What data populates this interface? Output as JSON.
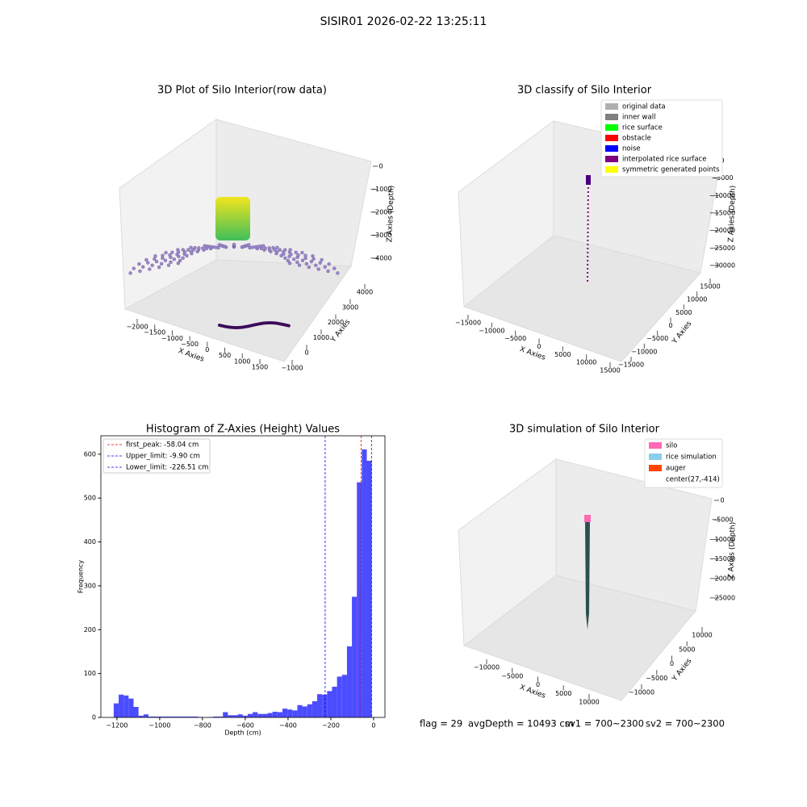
{
  "title": "SISIR01 2026-02-22 13:25:11",
  "chart_data": [
    {
      "type": "scatter3d",
      "title": "3D Plot of Silo Interior(row data)",
      "xlabel": "X Axies",
      "ylabel": "Y Axies",
      "zlabel": "Z Axies (Depth)",
      "xlim": [
        -2000,
        1500
      ],
      "xticks": [
        {
          "value": -2000,
          "label": "−2000"
        },
        {
          "value": -1500,
          "label": "−1500"
        },
        {
          "value": -1000,
          "label": "−1000"
        },
        {
          "value": -500,
          "label": "−500"
        },
        0,
        500,
        1000,
        1500
      ],
      "ylim": [
        -1000,
        4000
      ],
      "yticks": [
        {
          "value": -1000,
          "label": "−1000"
        },
        0,
        1000,
        2000,
        3000,
        4000
      ],
      "zlim": [
        -4000,
        0
      ],
      "zticks": [
        {
          "value": -4000,
          "label": "−4000"
        },
        {
          "value": -3000,
          "label": "−3000"
        },
        {
          "value": -2000,
          "label": "−2000"
        },
        {
          "value": -1000,
          "label": "−1000"
        },
        0
      ]
    },
    {
      "type": "scatter3d",
      "title": "3D classify of Silo Interior",
      "xlabel": "X Axies",
      "ylabel": "Y Axies",
      "zlabel": "Z Axies (Depth)",
      "xlim": [
        -15000,
        15000
      ],
      "xticks": [
        {
          "value": -15000,
          "label": "−15000"
        },
        {
          "value": -10000,
          "label": "−10000"
        },
        {
          "value": -5000,
          "label": "−5000"
        },
        0,
        5000,
        10000,
        15000
      ],
      "ylim": [
        -15000,
        15000
      ],
      "yticks": [
        {
          "value": -15000,
          "label": "−15000"
        },
        {
          "value": -10000,
          "label": "−10000"
        },
        {
          "value": -5000,
          "label": "−5000"
        },
        0,
        5000,
        10000,
        15000
      ],
      "zlim": [
        -30000,
        0
      ],
      "zticks": [
        {
          "value": -30000,
          "label": "−30000"
        },
        {
          "value": -25000,
          "label": "−25000"
        },
        {
          "value": -20000,
          "label": "−20000"
        },
        {
          "value": -15000,
          "label": "−15000"
        },
        {
          "value": -10000,
          "label": "−10000"
        },
        {
          "value": -5000,
          "label": "−5000"
        },
        0
      ],
      "legend": [
        {
          "name": "original data",
          "color": "#b0b0b0"
        },
        {
          "name": "inner wall",
          "color": "#808080"
        },
        {
          "name": "rice surface",
          "color": "#00ff00"
        },
        {
          "name": "obstacle",
          "color": "#ff0000"
        },
        {
          "name": "noise",
          "color": "#0000ff"
        },
        {
          "name": "interpolated rice surface",
          "color": "#800080"
        },
        {
          "name": "symmetric generated points",
          "color": "#ffff00"
        }
      ]
    },
    {
      "type": "histogram",
      "title": "Histogram of Z-Axies (Height) Values",
      "xlabel": "Depth (cm)",
      "ylabel": "Frequency",
      "color": "#4c4cff",
      "bins": [
        -1215,
        -1191.8,
        -1168.6,
        -1145.4,
        -1122.2,
        -1099,
        -1075.8,
        -1052.6,
        -1029.4,
        -1006.2,
        -983,
        -959.8,
        -936.6,
        -913.4,
        -890.2,
        -867,
        -843.8,
        -820.6,
        -797.4,
        -774.2,
        -751,
        -727.8,
        -704.6,
        -681.4,
        -658.2,
        -635,
        -611.8,
        -588.6,
        -565.4,
        -542.2,
        -519,
        -495.8,
        -472.6,
        -449.4,
        -426.2,
        -403,
        -379.8,
        -356.6,
        -333.4,
        -310.2,
        -287,
        -263.8,
        -240.6,
        -217.4,
        -194.2,
        -171,
        -147.8,
        -124.6,
        -101.4,
        -78.2,
        -55,
        -31.8,
        -8.6
      ],
      "values": [
        32,
        52,
        50,
        43,
        24,
        4,
        7,
        2,
        2,
        2,
        2,
        2,
        2,
        2,
        2,
        2,
        2,
        1,
        0,
        1,
        2,
        2,
        12,
        5,
        5,
        7,
        4,
        8,
        12,
        8,
        8,
        10,
        13,
        12,
        20,
        18,
        16,
        28,
        25,
        30,
        37,
        53,
        52,
        60,
        70,
        93,
        97,
        162,
        275,
        536,
        611,
        585
      ],
      "xlim": [
        -1275,
        53
      ],
      "xticks": [
        {
          "value": -1200,
          "label": "−1200"
        },
        {
          "value": -1000,
          "label": "−1000"
        },
        {
          "value": -800,
          "label": "−800"
        },
        {
          "value": -600,
          "label": "−600"
        },
        {
          "value": -400,
          "label": "−400"
        },
        {
          "value": -200,
          "label": "−200"
        },
        0
      ],
      "ylim": [
        0,
        642
      ],
      "yticks": [
        0,
        100,
        200,
        300,
        400,
        500,
        600
      ],
      "vlines": [
        {
          "name": "first_peak: -58.04 cm",
          "value": -58.04,
          "color": "#ff0000"
        },
        {
          "name": "Upper_limit: -9.90 cm",
          "value": -9.9,
          "color": "#0000ff"
        },
        {
          "name": "Lower_limit: -226.51 cm",
          "value": -226.51,
          "color": "#0000ff"
        }
      ],
      "legend_position": "upper left"
    },
    {
      "type": "surface3d",
      "title": "3D simulation of Silo Interior",
      "xlabel": "X Axies",
      "ylabel": "Y Axies",
      "zlabel": "Z Axies (Depth)",
      "xlim": [
        -10000,
        10000
      ],
      "xticks": [
        {
          "value": -10000,
          "label": "−10000"
        },
        {
          "value": -5000,
          "label": "−5000"
        },
        0,
        5000,
        10000
      ],
      "ylim": [
        -10000,
        10000
      ],
      "yticks": [
        {
          "value": -10000,
          "label": "−10000"
        },
        {
          "value": -5000,
          "label": "−5000"
        },
        0,
        5000,
        10000
      ],
      "zlim": [
        -25000,
        0
      ],
      "zticks": [
        {
          "value": -25000,
          "label": "−25000"
        },
        {
          "value": -20000,
          "label": "−20000"
        },
        {
          "value": -15000,
          "label": "−15000"
        },
        {
          "value": -10000,
          "label": "−10000"
        },
        {
          "value": -5000,
          "label": "−5000"
        },
        0
      ],
      "legend": [
        {
          "name": "silo",
          "color": "#ff69b4"
        },
        {
          "name": "rice simulation",
          "color": "#87ceeb"
        },
        {
          "name": "auger",
          "color": "#ff4500"
        },
        {
          "name": "center(27,-414)",
          "color": null
        }
      ]
    }
  ],
  "footer": [
    "flag = 29",
    "avgDepth = 10493 cm",
    "sv1 = 700~2300",
    "sv2 = 700~2300"
  ]
}
